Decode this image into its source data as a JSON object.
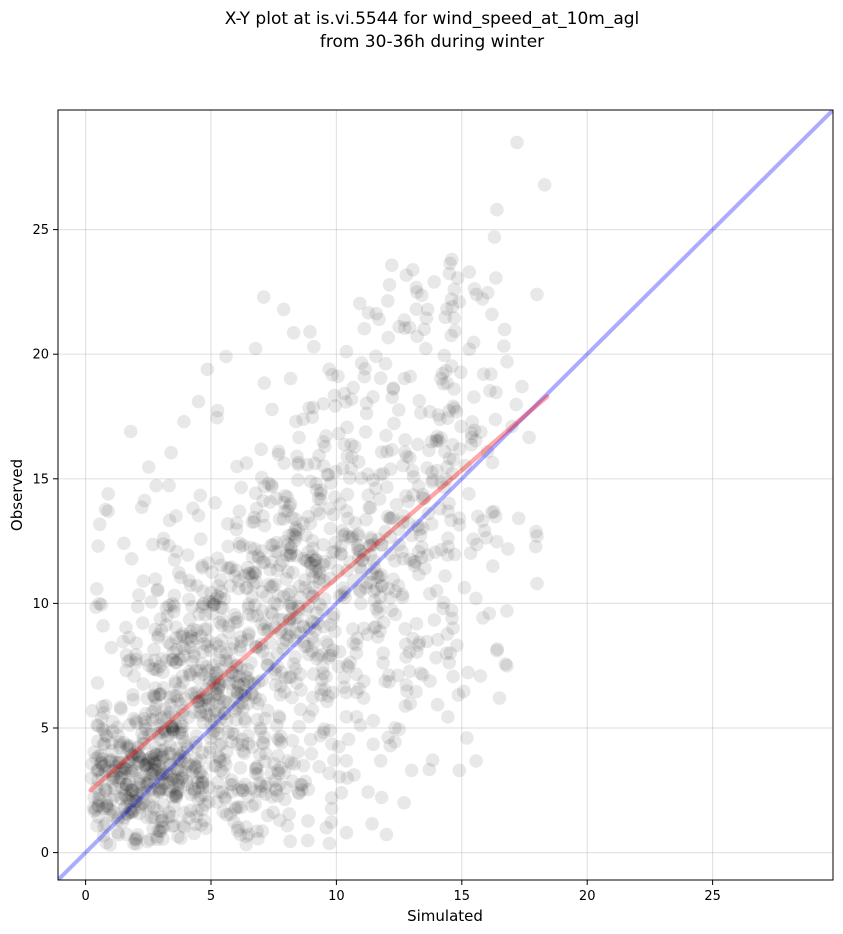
{
  "chart_data": {
    "type": "scatter",
    "title_lines": [
      "X-Y plot at is.vi.5544 for wind_speed_at_10m_agl",
      "from 30-36h during winter"
    ],
    "xlabel": "Simulated",
    "ylabel": "Observed",
    "xlim": [
      -1.1,
      29.8
    ],
    "ylim": [
      -1.1,
      29.8
    ],
    "xticks": [
      0,
      5,
      10,
      15,
      20,
      25
    ],
    "yticks": [
      0,
      5,
      10,
      15,
      20,
      25
    ],
    "grid": true,
    "point_color": "#000000",
    "point_alpha": 0.09,
    "fit_line": {
      "color": "#ff0000",
      "alpha": 0.35,
      "x": [
        0.2,
        18.4
      ],
      "y": [
        2.5,
        18.3
      ]
    },
    "identity_line": {
      "color": "#0000ff",
      "alpha": 0.33,
      "x": [
        -1.1,
        29.8
      ],
      "y": [
        -1.1,
        29.8
      ]
    },
    "point_clusters": [
      {
        "cx": 2.0,
        "cy": 3.0,
        "sx": 1.2,
        "sy": 1.3,
        "n": 260
      },
      {
        "cx": 4.5,
        "cy": 6.5,
        "sx": 2.0,
        "sy": 2.8,
        "n": 420
      },
      {
        "cx": 8.0,
        "cy": 10.0,
        "sx": 2.5,
        "sy": 3.5,
        "n": 380
      },
      {
        "cx": 11.5,
        "cy": 12.5,
        "sx": 2.2,
        "sy": 4.0,
        "n": 260
      },
      {
        "cx": 14.5,
        "cy": 15.0,
        "sx": 1.5,
        "sy": 4.5,
        "n": 140
      },
      {
        "cx": 6.0,
        "cy": 2.5,
        "sx": 2.5,
        "sy": 1.2,
        "n": 120
      }
    ],
    "points": [
      [
        17.2,
        28.5
      ],
      [
        18.3,
        26.8
      ],
      [
        16.4,
        25.8
      ],
      [
        16.3,
        24.7
      ],
      [
        14.6,
        23.8
      ],
      [
        15.3,
        23.3
      ],
      [
        14.7,
        22.6
      ],
      [
        14.9,
        22.1
      ],
      [
        18.0,
        22.4
      ],
      [
        16.2,
        21.6
      ],
      [
        7.9,
        21.8
      ],
      [
        4.5,
        18.1
      ],
      [
        1.8,
        16.9
      ],
      [
        9.1,
        20.3
      ],
      [
        17.4,
        18.7
      ],
      [
        0.5,
        12.3
      ],
      [
        0.9,
        14.4
      ],
      [
        0.9,
        13.7
      ],
      [
        0.7,
        9.1
      ],
      [
        0.8,
        5.9
      ],
      [
        15.2,
        4.6
      ],
      [
        14.9,
        3.3
      ],
      [
        12.7,
        2.0
      ],
      [
        10.2,
        2.4
      ],
      [
        10.4,
        0.8
      ],
      [
        9.6,
        1.0
      ],
      [
        13.0,
        3.3
      ],
      [
        18.0,
        12.7
      ],
      [
        18.0,
        10.8
      ],
      [
        16.8,
        9.7
      ],
      [
        16.4,
        8.1
      ],
      [
        16.5,
        6.2
      ],
      [
        16.8,
        7.5
      ],
      [
        13.5,
        21.0
      ],
      [
        13.9,
        22.9
      ],
      [
        12.5,
        21.1
      ],
      [
        11.7,
        21.4
      ],
      [
        10.4,
        20.1
      ],
      [
        15.3,
        20.2
      ],
      [
        17.0,
        17.1
      ]
    ]
  }
}
